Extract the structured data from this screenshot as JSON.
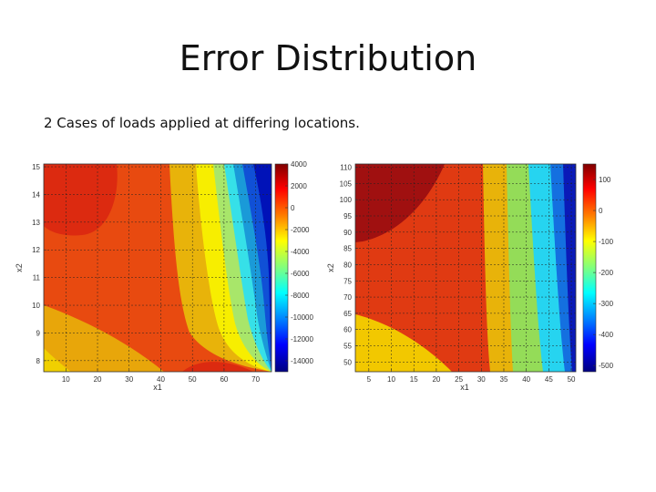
{
  "title": "Error Distribution",
  "subtitle": "2 Cases of loads applied at differing locations.",
  "chart_data": [
    {
      "type": "heatmap",
      "subtype": "filled-contour",
      "xlabel": "x1",
      "ylabel": "x2",
      "xticks": [
        "10",
        "20",
        "30",
        "40",
        "50",
        "60",
        "70"
      ],
      "yticks": [
        "8",
        "9",
        "10",
        "11",
        "12",
        "13",
        "14",
        "15"
      ],
      "xlim": [
        3,
        75
      ],
      "ylim": [
        7.6,
        15.1
      ],
      "grid": true,
      "colormap": "jet",
      "colorbar": {
        "ticks": [
          "4000",
          "2000",
          "0",
          "-2000",
          "-4000",
          "-6000",
          "-8000",
          "-10000",
          "-12000",
          "-14000"
        ],
        "range": [
          -15000,
          4000
        ],
        "placement": "right"
      }
    },
    {
      "type": "heatmap",
      "subtype": "filled-contour",
      "xlabel": "x1",
      "ylabel": "x2",
      "xticks": [
        "5",
        "10",
        "15",
        "20",
        "25",
        "30",
        "35",
        "40",
        "45",
        "50"
      ],
      "yticks": [
        "50",
        "55",
        "60",
        "65",
        "70",
        "75",
        "80",
        "85",
        "90",
        "95",
        "100",
        "105",
        "110"
      ],
      "xlim": [
        2,
        51
      ],
      "ylim": [
        47,
        111
      ],
      "grid": true,
      "colormap": "jet",
      "colorbar": {
        "ticks": [
          "100",
          "0",
          "-100",
          "-200",
          "-300",
          "-400",
          "-500"
        ],
        "range": [
          -520,
          150
        ],
        "placement": "right"
      }
    }
  ]
}
